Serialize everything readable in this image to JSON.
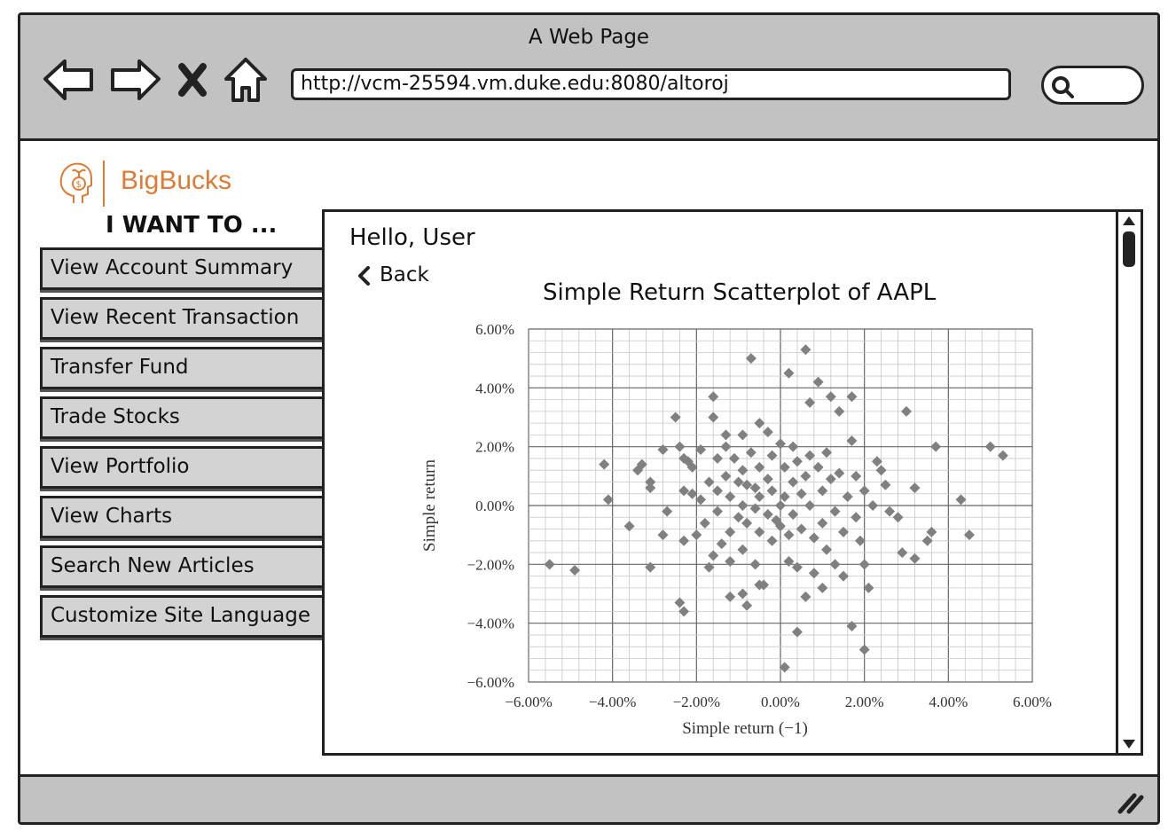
{
  "browser": {
    "title": "A Web Page",
    "url": "http://vcm-25594.vm.duke.edu:8080/altoroj"
  },
  "brand": {
    "name": "BigBucks"
  },
  "sidebar": {
    "heading": "I WANT TO ...",
    "items": [
      {
        "label": "View Account Summary"
      },
      {
        "label": "View Recent Transaction"
      },
      {
        "label": "Transfer Fund"
      },
      {
        "label": "Trade Stocks"
      },
      {
        "label": "View Portfolio"
      },
      {
        "label": "View Charts"
      },
      {
        "label": "Search New Articles"
      },
      {
        "label": "Customize Site Language"
      }
    ]
  },
  "main": {
    "greeting": "Hello, User",
    "back_label": "Back",
    "chart_title": "Simple Return Scatterplot of AAPL"
  },
  "colors": {
    "accent": "#e07b35",
    "chrome": "#c2c2c2",
    "points": "#808080"
  },
  "chart_data": {
    "type": "scatter",
    "title": "Simple Return Scatterplot of AAPL",
    "xlabel": "Simple return (−1)",
    "ylabel": "Simple return",
    "xlim": [
      -6,
      6
    ],
    "ylim": [
      -6,
      6
    ],
    "x_ticks": [
      "−6.00%",
      "−4.00%",
      "−2.00%",
      "0.00%",
      "2.00%",
      "4.00%",
      "6.00%"
    ],
    "y_ticks": [
      "−6.00%",
      "−4.00%",
      "−2.00%",
      "0.00%",
      "2.00%",
      "4.00%",
      "6.00%"
    ],
    "grid": true,
    "points": [
      [
        -5.5,
        -2.0
      ],
      [
        -4.9,
        -2.2
      ],
      [
        -4.2,
        1.4
      ],
      [
        -4.1,
        0.2
      ],
      [
        -3.6,
        -0.7
      ],
      [
        -3.4,
        1.2
      ],
      [
        -3.3,
        1.4
      ],
      [
        -3.1,
        0.8
      ],
      [
        -3.1,
        0.6
      ],
      [
        -3.1,
        -2.1
      ],
      [
        -2.8,
        1.9
      ],
      [
        -2.8,
        -1.0
      ],
      [
        -2.7,
        -0.2
      ],
      [
        -2.5,
        3.0
      ],
      [
        -2.4,
        2.0
      ],
      [
        -2.3,
        1.6
      ],
      [
        -2.3,
        0.5
      ],
      [
        -2.3,
        -1.2
      ],
      [
        -2.2,
        1.5
      ],
      [
        -2.1,
        1.3
      ],
      [
        -2.1,
        0.4
      ],
      [
        -2.0,
        -1.0
      ],
      [
        -1.9,
        1.9
      ],
      [
        -1.9,
        0.2
      ],
      [
        -1.8,
        -0.6
      ],
      [
        -1.7,
        0.8
      ],
      [
        -1.7,
        -2.1
      ],
      [
        -1.6,
        3.7
      ],
      [
        -1.6,
        3.0
      ],
      [
        -1.5,
        1.6
      ],
      [
        -1.5,
        0.5
      ],
      [
        -1.5,
        -0.2
      ],
      [
        -1.4,
        -1.3
      ],
      [
        -1.3,
        2.4
      ],
      [
        -1.3,
        2.0
      ],
      [
        -1.3,
        1.0
      ],
      [
        -1.2,
        0.3
      ],
      [
        -1.2,
        -0.9
      ],
      [
        -1.2,
        -1.9
      ],
      [
        -1.1,
        1.6
      ],
      [
        -1.0,
        0.8
      ],
      [
        -1.0,
        -0.4
      ],
      [
        -0.9,
        2.4
      ],
      [
        -0.9,
        1.2
      ],
      [
        -0.9,
        0.0
      ],
      [
        -0.9,
        -1.5
      ],
      [
        -0.9,
        -3.0
      ],
      [
        -0.8,
        0.7
      ],
      [
        -0.8,
        -0.6
      ],
      [
        -0.7,
        5.0
      ],
      [
        -0.7,
        1.8
      ],
      [
        -0.6,
        -0.1
      ],
      [
        -0.6,
        -2.0
      ],
      [
        -0.5,
        2.8
      ],
      [
        -0.5,
        1.3
      ],
      [
        -0.5,
        0.3
      ],
      [
        -0.5,
        -0.9
      ],
      [
        -0.4,
        -2.7
      ],
      [
        -0.3,
        2.5
      ],
      [
        -0.3,
        0.9
      ],
      [
        -0.3,
        -0.3
      ],
      [
        -0.2,
        1.7
      ],
      [
        -0.2,
        0.5
      ],
      [
        -0.2,
        -1.2
      ],
      [
        -0.1,
        -0.5
      ],
      [
        0.0,
        2.1
      ],
      [
        0.0,
        0.0
      ],
      [
        0.0,
        -0.7
      ],
      [
        0.1,
        1.3
      ],
      [
        0.1,
        0.3
      ],
      [
        0.2,
        4.5
      ],
      [
        0.2,
        -1.0
      ],
      [
        0.2,
        -1.9
      ],
      [
        0.3,
        2.0
      ],
      [
        0.3,
        0.8
      ],
      [
        0.3,
        -0.3
      ],
      [
        0.4,
        1.5
      ],
      [
        0.4,
        -2.1
      ],
      [
        0.5,
        0.4
      ],
      [
        0.5,
        -0.8
      ],
      [
        0.6,
        5.3
      ],
      [
        0.6,
        1.0
      ],
      [
        0.6,
        -3.1
      ],
      [
        0.7,
        3.5
      ],
      [
        0.7,
        1.7
      ],
      [
        0.7,
        0.0
      ],
      [
        0.8,
        -1.1
      ],
      [
        0.8,
        -2.3
      ],
      [
        0.9,
        4.2
      ],
      [
        0.9,
        1.3
      ],
      [
        1.0,
        0.5
      ],
      [
        1.0,
        -0.6
      ],
      [
        1.0,
        -2.8
      ],
      [
        1.1,
        1.8
      ],
      [
        1.1,
        -1.5
      ],
      [
        1.2,
        3.7
      ],
      [
        1.2,
        0.9
      ],
      [
        1.3,
        -0.2
      ],
      [
        1.3,
        -2.0
      ],
      [
        1.4,
        3.2
      ],
      [
        1.4,
        1.1
      ],
      [
        1.5,
        -0.9
      ],
      [
        1.5,
        -2.4
      ],
      [
        1.6,
        0.3
      ],
      [
        1.7,
        3.7
      ],
      [
        1.7,
        2.2
      ],
      [
        1.7,
        -4.1
      ],
      [
        1.8,
        1.0
      ],
      [
        1.8,
        -0.4
      ],
      [
        1.9,
        -1.2
      ],
      [
        2.0,
        0.5
      ],
      [
        2.0,
        -2.0
      ],
      [
        2.1,
        -2.8
      ],
      [
        2.0,
        -4.9
      ],
      [
        2.2,
        0.0
      ],
      [
        2.3,
        1.5
      ],
      [
        2.4,
        1.2
      ],
      [
        2.5,
        0.7
      ],
      [
        2.6,
        -0.2
      ],
      [
        2.8,
        -0.4
      ],
      [
        2.9,
        -1.6
      ],
      [
        3.0,
        3.2
      ],
      [
        3.2,
        0.6
      ],
      [
        3.2,
        -1.8
      ],
      [
        3.5,
        -1.2
      ],
      [
        3.6,
        -0.9
      ],
      [
        3.7,
        2.0
      ],
      [
        4.3,
        0.2
      ],
      [
        4.5,
        -1.0
      ],
      [
        5.0,
        2.0
      ],
      [
        5.3,
        1.7
      ],
      [
        0.1,
        -5.5
      ],
      [
        0.4,
        -4.3
      ],
      [
        -2.4,
        -3.3
      ],
      [
        -2.3,
        -3.6
      ],
      [
        -1.2,
        -3.1
      ],
      [
        -0.8,
        -3.4
      ],
      [
        -0.5,
        -2.7
      ],
      [
        -1.6,
        -1.7
      ],
      [
        -0.6,
        0.6
      ]
    ]
  }
}
